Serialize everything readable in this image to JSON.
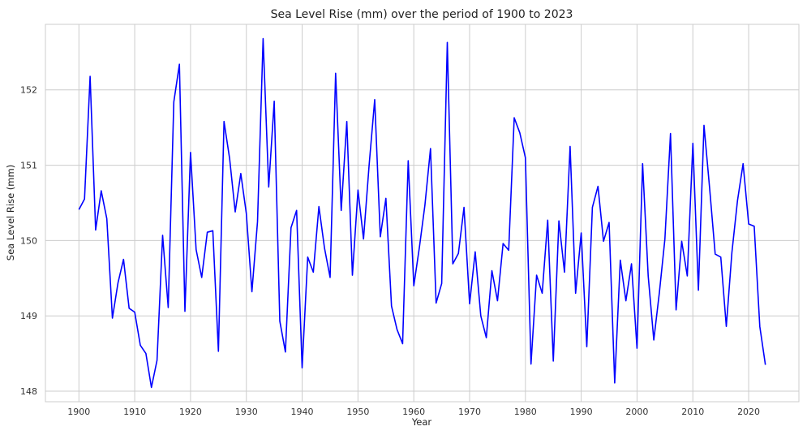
{
  "chart_data": {
    "type": "line",
    "title": "Sea Level Rise (mm) over the period of 1900 to 2023",
    "xlabel": "Year",
    "ylabel": "Sea Level Rise (mm)",
    "xlim": [
      1894,
      2029
    ],
    "ylim": [
      147.86,
      152.87
    ],
    "xticks": [
      1900,
      1910,
      1920,
      1930,
      1940,
      1950,
      1960,
      1970,
      1980,
      1990,
      2000,
      2010,
      2020
    ],
    "yticks": [
      148,
      149,
      150,
      151,
      152
    ],
    "grid": true,
    "legend": "none",
    "series": [
      {
        "color": "#0000ff",
        "x": [
          1900,
          1901,
          1902,
          1903,
          1904,
          1905,
          1906,
          1907,
          1908,
          1909,
          1910,
          1911,
          1912,
          1913,
          1914,
          1915,
          1916,
          1917,
          1918,
          1919,
          1920,
          1921,
          1922,
          1923,
          1924,
          1925,
          1926,
          1927,
          1928,
          1929,
          1930,
          1931,
          1932,
          1933,
          1934,
          1935,
          1936,
          1937,
          1938,
          1939,
          1940,
          1941,
          1942,
          1943,
          1944,
          1945,
          1946,
          1947,
          1948,
          1949,
          1950,
          1951,
          1952,
          1953,
          1954,
          1955,
          1956,
          1957,
          1958,
          1959,
          1960,
          1961,
          1962,
          1963,
          1964,
          1965,
          1966,
          1967,
          1968,
          1969,
          1970,
          1971,
          1972,
          1973,
          1974,
          1975,
          1976,
          1977,
          1978,
          1979,
          1980,
          1981,
          1982,
          1983,
          1984,
          1985,
          1986,
          1987,
          1988,
          1989,
          1990,
          1991,
          1992,
          1993,
          1994,
          1995,
          1996,
          1997,
          1998,
          1999,
          2000,
          2001,
          2002,
          2003,
          2004,
          2005,
          2006,
          2007,
          2008,
          2009,
          2010,
          2011,
          2012,
          2013,
          2014,
          2015,
          2016,
          2017,
          2018,
          2019,
          2020,
          2021,
          2022,
          2023
        ],
        "values": [
          150.41,
          150.55,
          152.18,
          150.14,
          150.66,
          150.29,
          148.97,
          149.44,
          149.75,
          149.1,
          149.05,
          148.61,
          148.5,
          148.05,
          148.41,
          150.07,
          149.11,
          151.84,
          152.34,
          149.06,
          151.17,
          149.88,
          149.51,
          150.11,
          150.13,
          148.53,
          151.58,
          151.09,
          150.38,
          150.89,
          150.36,
          149.32,
          150.25,
          152.68,
          150.71,
          151.85,
          148.93,
          148.52,
          150.17,
          150.4,
          148.31,
          149.78,
          149.58,
          150.45,
          149.9,
          149.51,
          152.22,
          150.4,
          151.58,
          149.54,
          150.67,
          150.02,
          151.0,
          151.87,
          150.05,
          150.56,
          149.13,
          148.82,
          148.63,
          151.06,
          149.4,
          149.91,
          150.47,
          151.22,
          149.17,
          149.43,
          152.63,
          149.69,
          149.83,
          150.44,
          149.16,
          149.85,
          149.0,
          148.71,
          149.6,
          149.2,
          149.96,
          149.87,
          151.63,
          151.43,
          151.1,
          148.36,
          149.54,
          149.3,
          150.27,
          148.4,
          150.26,
          149.58,
          151.25,
          149.3,
          150.1,
          148.59,
          150.44,
          150.72,
          149.99,
          150.24,
          148.11,
          149.74,
          149.2,
          149.69,
          148.57,
          151.02,
          149.53,
          148.68,
          149.31,
          150.02,
          151.42,
          149.08,
          149.99,
          149.53,
          151.29,
          149.34,
          151.53,
          150.7,
          149.82,
          149.78,
          148.86,
          149.84,
          150.53,
          151.02,
          150.22,
          150.19,
          148.86,
          148.35
        ]
      }
    ]
  }
}
